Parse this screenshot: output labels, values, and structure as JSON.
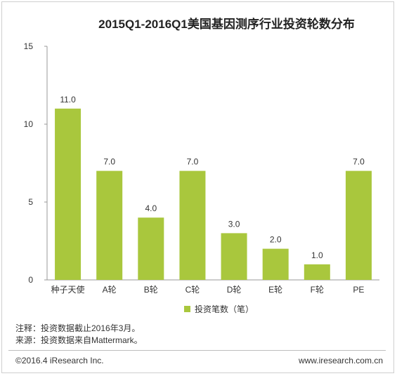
{
  "chart_data": {
    "type": "bar",
    "title": "2015Q1-2016Q1美国基因测序行业投资轮数分布",
    "categories": [
      "种子天使",
      "A轮",
      "B轮",
      "C轮",
      "D轮",
      "E轮",
      "F轮",
      "PE"
    ],
    "series": [
      {
        "name": "投资笔数（笔）",
        "values": [
          11.0,
          7.0,
          4.0,
          7.0,
          3.0,
          2.0,
          1.0,
          7.0
        ]
      }
    ],
    "value_labels": [
      "11.0",
      "7.0",
      "4.0",
      "7.0",
      "3.0",
      "2.0",
      "1.0",
      "7.0"
    ],
    "ylim": [
      0,
      15
    ],
    "yticks": [
      0,
      5,
      10,
      15
    ],
    "grid": false,
    "legend_position": "bottom-center",
    "bar_color": "#a9c73d"
  },
  "notes": {
    "line1": "注释：投资数据截止2016年3月。",
    "line2": "来源：投资数据来自Mattermark。"
  },
  "footer": {
    "copyright": "©2016.4 iResearch Inc.",
    "website": "www.iresearch.com.cn"
  }
}
